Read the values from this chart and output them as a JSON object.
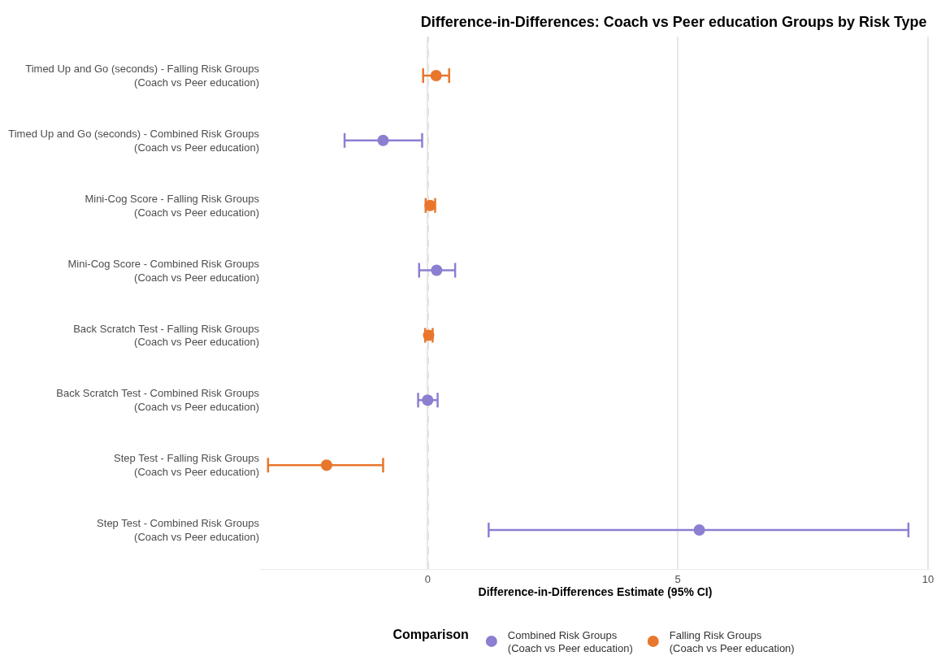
{
  "chart_data": {
    "type": "scatter",
    "orientation": "horizontal",
    "title": "Difference-in-Differences: Coach vs Peer education Groups by Risk Type",
    "xlabel": "Difference-in-Differences Estimate (95% CI)",
    "legend_title": "Comparison",
    "categories": [
      "Timed Up and Go (seconds) - Falling Risk Groups\n(Coach vs Peer education)",
      "Timed Up and Go (seconds) - Combined Risk Groups\n(Coach vs Peer education)",
      "Mini-Cog Score - Falling Risk Groups\n(Coach vs Peer education)",
      "Mini-Cog Score - Combined Risk Groups\n(Coach vs Peer education)",
      "Back Scratch Test - Falling Risk Groups\n(Coach vs Peer education)",
      "Back Scratch Test - Combined Risk Groups\n(Coach vs Peer education)",
      "Step Test - Falling Risk Groups\n(Coach vs Peer education)",
      "Step Test - Combined Risk Groups\n(Coach vs Peer education)"
    ],
    "series": [
      {
        "name": "Combined Risk Groups\n(Coach vs Peer education)",
        "color": "#8b7fd1",
        "values": [
          null,
          -0.89,
          null,
          0.18,
          null,
          0.0,
          null,
          5.43
        ],
        "errors": [
          null,
          [
            -1.66,
            -0.11
          ],
          null,
          [
            -0.17,
            0.55
          ],
          null,
          [
            -0.19,
            0.2
          ],
          null,
          [
            1.22,
            9.61
          ]
        ]
      },
      {
        "name": "Falling Risk Groups\n(Coach vs Peer education)",
        "color": "#e8762c",
        "values": [
          0.17,
          null,
          0.05,
          null,
          0.02,
          null,
          -2.02,
          null
        ],
        "errors": [
          [
            -0.09,
            0.43
          ],
          null,
          [
            -0.04,
            0.15
          ],
          null,
          [
            -0.05,
            0.1
          ],
          null,
          [
            -3.19,
            -0.89
          ],
          null
        ]
      }
    ],
    "xlim": [
      -3.35,
      10.05
    ],
    "xticks": [
      0,
      5,
      10
    ],
    "ref_lines": [
      {
        "axis": "x",
        "value": 0,
        "color": "#7f7f7f",
        "line_style": "dashed"
      }
    ],
    "grid": "x",
    "legend": "bottom",
    "marker": "circle"
  }
}
